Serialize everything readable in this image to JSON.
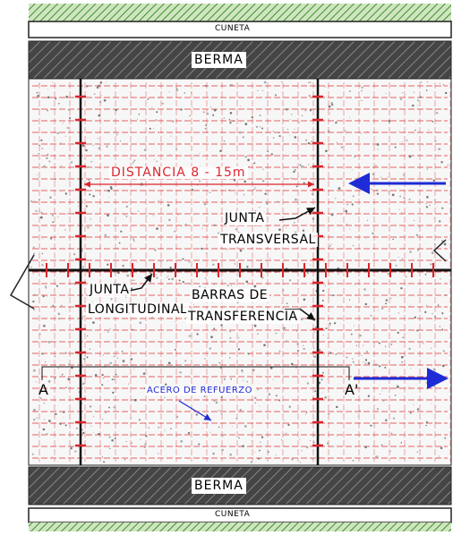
{
  "labels": {
    "top_shoulder_edge": "CUNETA",
    "top_shoulder": "BERMA",
    "distance": "DISTANCIA 8 - 15m",
    "transverse_joint_line1": "JUNTA",
    "transverse_joint_line2": "TRANSVERSAL",
    "longitudinal_joint_line1": "JUNTA",
    "longitudinal_joint_line2": "LONGITUDINAL",
    "dowel_bars_line1": "BARRAS DE",
    "dowel_bars_line2": "TRANSFERENCIA",
    "reinforcement": "ACERO DE REFUERZO",
    "section_start": "A",
    "section_end": "A'",
    "bottom_shoulder": "BERMA",
    "bottom_shoulder_edge": "CUNETA"
  },
  "colors": {
    "rebar": "#e23b3b",
    "traffic_arrow": "#1e2bd6",
    "joint": "#111111",
    "shoulder_fill": "#4a4a4a",
    "hatch_border": "#3f8f2a"
  }
}
